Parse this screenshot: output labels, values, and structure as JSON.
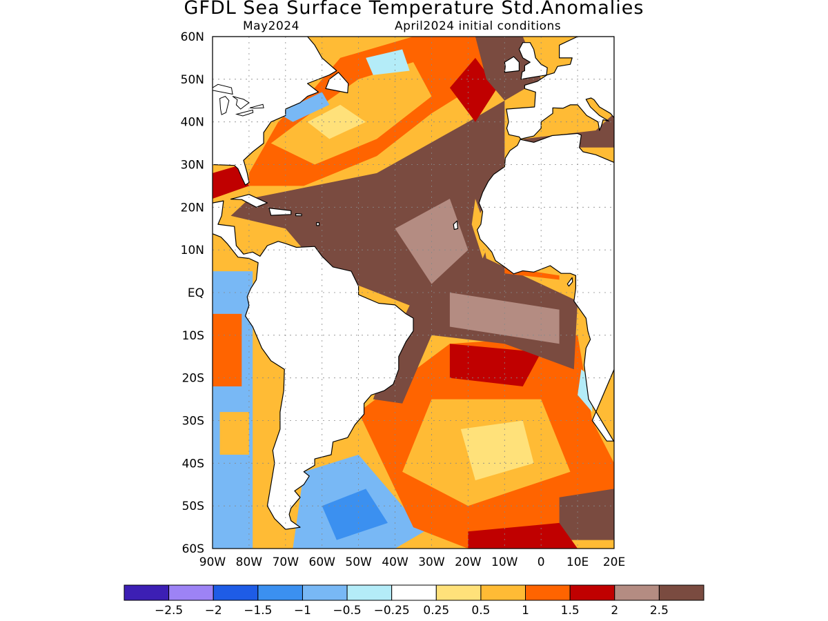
{
  "title": "GFDL Sea Surface Temperature Std.Anomalies",
  "valid_month": "May2024",
  "init_label": "April2024 initial conditions",
  "lat_labels": [
    "60N",
    "50N",
    "40N",
    "30N",
    "20N",
    "10N",
    "EQ",
    "10S",
    "20S",
    "30S",
    "40S",
    "50S",
    "60S"
  ],
  "lon_labels": [
    "90W",
    "80W",
    "70W",
    "60W",
    "50W",
    "40W",
    "30W",
    "20W",
    "10W",
    "0",
    "10E",
    "20E"
  ],
  "colorbar": {
    "colors": [
      "#3c1fb4",
      "#9d83f5",
      "#1e5ce6",
      "#3b90f0",
      "#78b8f5",
      "#b4ecf8",
      "#ffffff",
      "#ffe17a",
      "#ffbb35",
      "#ff6400",
      "#c00000",
      "#b48c82",
      "#7a4b40"
    ],
    "labels": [
      "−2.5",
      "−2",
      "−1.5",
      "−1",
      "−0.5",
      "−0.25",
      "0.25",
      "0.5",
      "1",
      "1.5",
      "2",
      "2.5"
    ]
  },
  "map": {
    "land_color": "#ffffff",
    "coastline_color": "#000000",
    "grid": "dotted"
  }
}
